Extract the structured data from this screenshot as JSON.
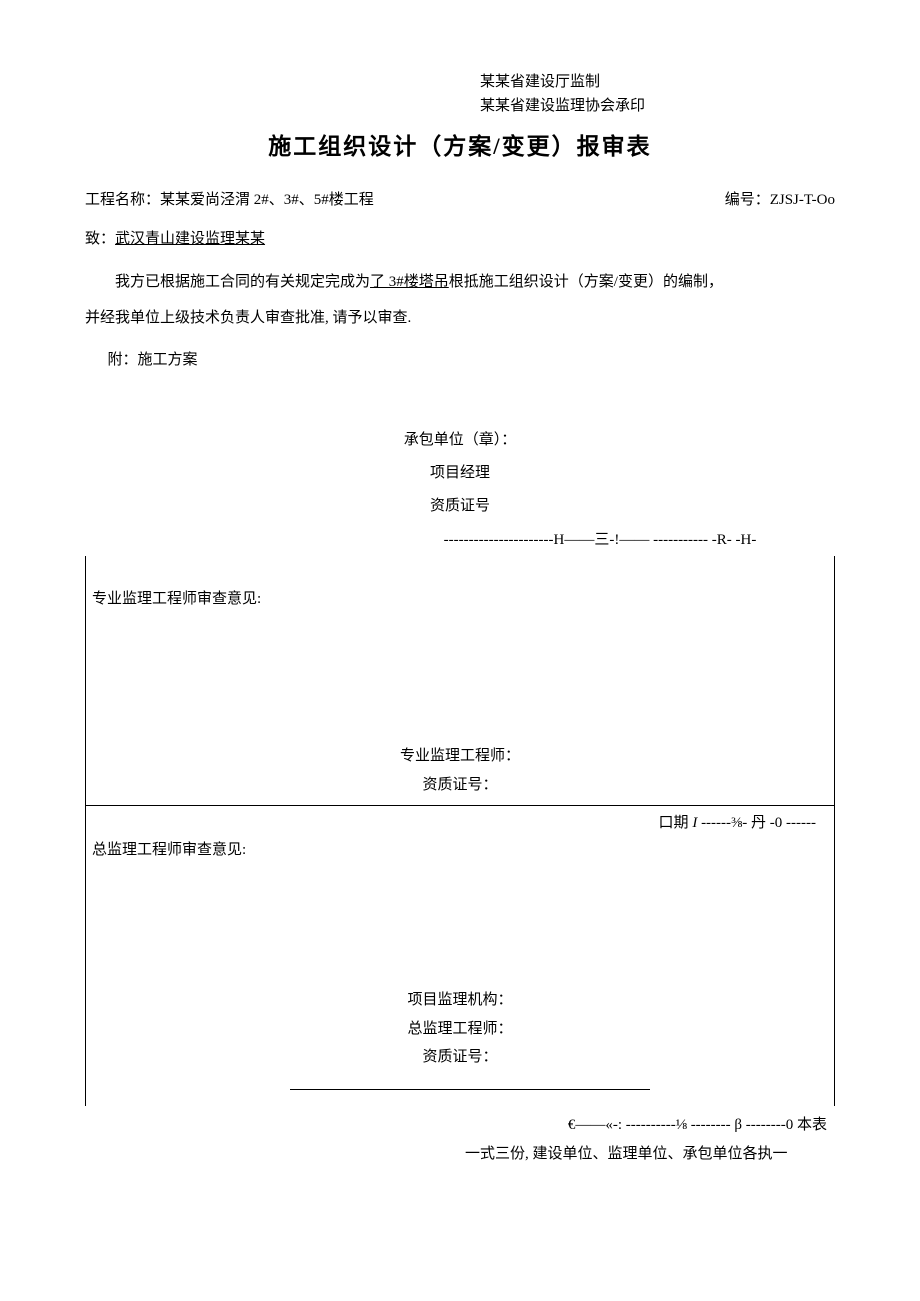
{
  "header": {
    "line1": "某某省建设厅监制",
    "line2": "某某省建设监理协会承印"
  },
  "title": "施工组织设计（方案/变更）报审表",
  "project": {
    "label": "工程名称：",
    "name": "某某爱尚泾渭 2#、3#、5#楼工程",
    "code_label": "编号：",
    "code": "ZJSJ-T-Oo"
  },
  "to": {
    "label": "致：",
    "recipient": "武汉青山建设监理某某"
  },
  "body": {
    "text1_a": "我方已根据施工合同的有关规定完成为",
    "text1_u": "了 3#楼塔吊",
    "text1_b": "根抵施工组织设计（方案/变更）的编制，",
    "text2": "并经我单位上级技术负责人审查批准, 请予以审查."
  },
  "attach": "附：施工方案",
  "contractor_block": {
    "unit": "承包单位（章）：",
    "manager": "项目经理",
    "cert": "资质证号"
  },
  "dashed": "----------------------H——三-!—— -----------          -R-      -H-",
  "section1": {
    "label": "专业监理工程师审查意见:",
    "sig1": "专业监理工程师：",
    "sig2": "资质证号："
  },
  "section2": {
    "date_line_a": "口期",
    "date_line_italic": " I ",
    "date_line_b": "          ------⅜-      丹      -0 ------",
    "label": "总监理工程师审查意见:",
    "sig1": "项目监理机构：",
    "sig2": "总监理工程师：",
    "sig3": "资质证号："
  },
  "footer": {
    "line1": "€——«-:   ----------⅛ -------- β --------0 本表",
    "line2": "一式三份, 建设单位、监理单位、承包单位各执一"
  }
}
